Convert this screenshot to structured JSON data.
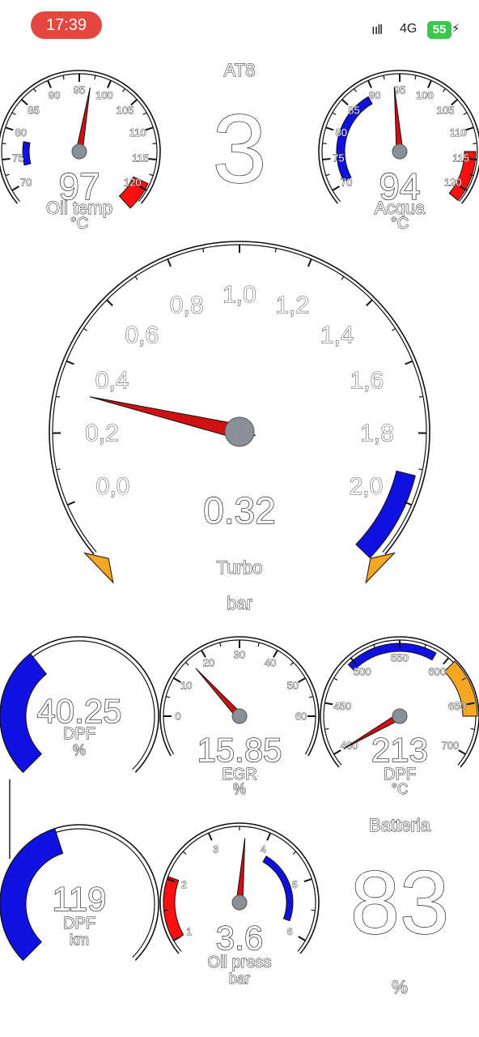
{
  "status_bar": {
    "time": "17:39",
    "signal": "ııll",
    "network": "4G",
    "battery": "55",
    "colors": {
      "time_pill": "#e5463f",
      "battery": "#3cc64b"
    }
  },
  "gear": {
    "label": "AT8",
    "value": "3"
  },
  "gauges": {
    "oil_temp": {
      "value_text": "97",
      "name": "Oil temp",
      "unit": "°C",
      "ticks": [
        "70",
        "75",
        "80",
        "85",
        "90",
        "95",
        "100",
        "105",
        "110",
        "115",
        "120"
      ],
      "value": 97,
      "min": 70,
      "max": 120
    },
    "water": {
      "value_text": "94",
      "name": "Acqua",
      "unit": "°C",
      "ticks": [
        "70",
        "75",
        "80",
        "85",
        "90",
        "95",
        "100",
        "105",
        "110",
        "115",
        "120"
      ],
      "value": 94,
      "min": 70,
      "max": 120
    },
    "turbo": {
      "value_text": "0.32",
      "name": "Turbo",
      "unit": "bar",
      "ticks": [
        "0,0",
        "0,2",
        "0,4",
        "0,6",
        "0,8",
        "1,0",
        "1,2",
        "1,4",
        "1,6",
        "1,8",
        "2,0"
      ],
      "value": 0.32,
      "min": 0,
      "max": 2
    },
    "dpf_pct": {
      "value_text": "40.25",
      "name": "DPF",
      "unit": "%",
      "value": 40.25
    },
    "egr": {
      "value_text": "15.85",
      "name": "EGR",
      "unit": "%",
      "ticks": [
        "0",
        "10",
        "20",
        "30",
        "40",
        "50",
        "60"
      ],
      "value": 15.85,
      "min": 0,
      "max": 60
    },
    "dpf_temp": {
      "value_text": "213",
      "name": "DPF",
      "unit": "°C",
      "ticks": [
        "400",
        "450",
        "500",
        "550",
        "600",
        "650",
        "700"
      ],
      "value": 213,
      "min": 400,
      "max": 700
    },
    "dpf_km": {
      "value_text": "119",
      "name": "DPF",
      "unit": "km",
      "value": 119
    },
    "oil_press": {
      "value_text": "3.6",
      "name": "Oil press",
      "unit": "bar",
      "ticks": [
        "1",
        "2",
        "3",
        "4",
        "5",
        "6"
      ],
      "value": 3.6,
      "min": 1,
      "max": 6
    },
    "battery": {
      "label": "Batteria",
      "value_text": "83",
      "unit": "%"
    }
  },
  "colors": {
    "needle": "#d01010",
    "hub": "#8a9098",
    "blue_band": "#1010e0",
    "red_band": "#ff1010",
    "orange_band": "#f5a623",
    "warn_marker": "#f5a623"
  }
}
